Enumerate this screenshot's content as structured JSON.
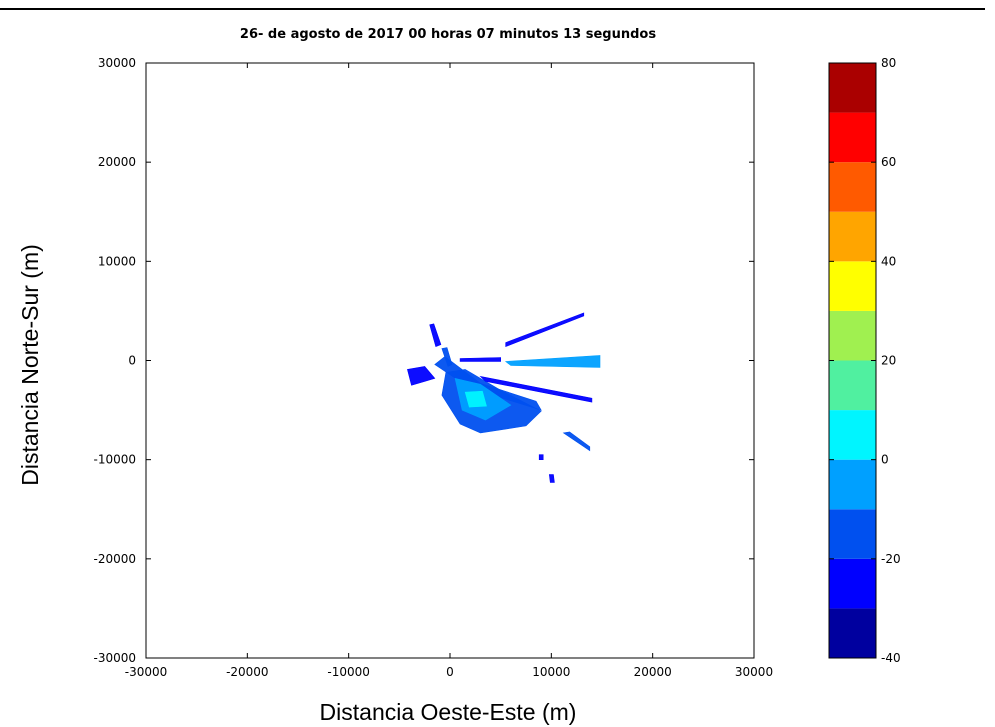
{
  "chart_data": {
    "type": "heatmap",
    "title": "26- de agosto de 2017 00 horas 07 minutos 13 segundos",
    "xlabel": "Distancia Oeste-Este (m)",
    "ylabel": "Distancia Norte-Sur  (m)",
    "xlim": [
      -30000,
      30000
    ],
    "ylim": [
      -30000,
      30000
    ],
    "x_ticks": [
      -30000,
      -20000,
      -10000,
      0,
      10000,
      20000,
      30000
    ],
    "y_ticks": [
      -30000,
      -20000,
      -10000,
      0,
      10000,
      20000,
      30000
    ],
    "colorbar": {
      "range": [
        -40,
        80
      ],
      "ticks": [
        -40,
        -20,
        0,
        20,
        40,
        60,
        80
      ],
      "levels": [
        {
          "from": -40,
          "to": -30,
          "color": "#00009f"
        },
        {
          "from": -30,
          "to": -20,
          "color": "#0000ff"
        },
        {
          "from": -20,
          "to": -10,
          "color": "#0050ef"
        },
        {
          "from": -10,
          "to": 0,
          "color": "#00a0ff"
        },
        {
          "from": 0,
          "to": 10,
          "color": "#00f5ff"
        },
        {
          "from": 10,
          "to": 20,
          "color": "#50f0a0"
        },
        {
          "from": 20,
          "to": 30,
          "color": "#a0f050"
        },
        {
          "from": 30,
          "to": 40,
          "color": "#ffff00"
        },
        {
          "from": 40,
          "to": 50,
          "color": "#ffa500"
        },
        {
          "from": 50,
          "to": 60,
          "color": "#ff5a00"
        },
        {
          "from": 60,
          "to": 70,
          "color": "#ff0000"
        },
        {
          "from": 70,
          "to": 80,
          "color": "#aa0000"
        }
      ]
    },
    "echo_regions": [
      {
        "poly": [
          [
            -1500,
            -400
          ],
          [
            2000,
            -2800
          ],
          [
            9000,
            -5000
          ],
          [
            8500,
            -4100
          ],
          [
            3000,
            -2300
          ],
          [
            -500,
            400
          ]
        ],
        "value": -15
      },
      {
        "poly": [
          [
            -400,
            -1200
          ],
          [
            1500,
            -900
          ],
          [
            5000,
            -3000
          ],
          [
            9000,
            -5100
          ],
          [
            7500,
            -6600
          ],
          [
            3000,
            -7300
          ],
          [
            1000,
            -6400
          ],
          [
            -800,
            -3500
          ]
        ],
        "value": -20
      },
      {
        "poly": [
          [
            500,
            -1800
          ],
          [
            3000,
            -2400
          ],
          [
            6000,
            -4500
          ],
          [
            3500,
            -6000
          ],
          [
            1200,
            -5000
          ]
        ],
        "value": -8
      },
      {
        "poly": [
          [
            1500,
            -3200
          ],
          [
            3200,
            -3100
          ],
          [
            3600,
            -4600
          ],
          [
            1900,
            -4700
          ]
        ],
        "value": 8
      },
      {
        "poly": [
          [
            5500,
            -100
          ],
          [
            14800,
            500
          ],
          [
            14800,
            -700
          ],
          [
            6000,
            -500
          ]
        ],
        "value": -10
      },
      {
        "poly": [
          [
            1000,
            200
          ],
          [
            5000,
            300
          ],
          [
            5000,
            -100
          ],
          [
            1000,
            -100
          ]
        ],
        "value": -25
      },
      {
        "poly": [
          [
            5500,
            1800
          ],
          [
            13200,
            4800
          ],
          [
            13200,
            4500
          ],
          [
            5500,
            1400
          ]
        ],
        "value": -25
      },
      {
        "poly": [
          [
            -2000,
            3600
          ],
          [
            -1600,
            3700
          ],
          [
            -900,
            1600
          ],
          [
            -1400,
            1400
          ]
        ],
        "value": -25
      },
      {
        "poly": [
          [
            -800,
            1200
          ],
          [
            -300,
            1300
          ],
          [
            200,
            -400
          ],
          [
            -200,
            -600
          ]
        ],
        "value": -20
      },
      {
        "poly": [
          [
            3000,
            -1600
          ],
          [
            14000,
            -3800
          ],
          [
            14000,
            -4200
          ],
          [
            3500,
            -2100
          ]
        ],
        "value": -25
      },
      {
        "poly": [
          [
            -4200,
            -900
          ],
          [
            -2500,
            -600
          ],
          [
            -1500,
            -1800
          ],
          [
            -3800,
            -2500
          ]
        ],
        "value": -25
      },
      {
        "poly": [
          [
            11200,
            -7300
          ],
          [
            11800,
            -7200
          ],
          [
            13800,
            -8700
          ],
          [
            13800,
            -9100
          ]
        ],
        "value": -20
      },
      {
        "poly": [
          [
            9800,
            -11500
          ],
          [
            10200,
            -11500
          ],
          [
            10300,
            -12300
          ],
          [
            9900,
            -12300
          ]
        ],
        "value": -25
      },
      {
        "poly": [
          [
            8800,
            -9500
          ],
          [
            9200,
            -9500
          ],
          [
            9200,
            -10000
          ],
          [
            8800,
            -10000
          ]
        ],
        "value": -25
      }
    ]
  }
}
